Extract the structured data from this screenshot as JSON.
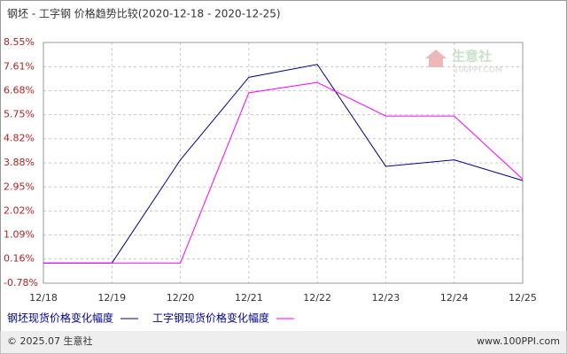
{
  "chart_data": {
    "type": "line",
    "title": "钢坯 - 工字钢 价格趋势比较(2020-12-18 - 2020-12-25)",
    "categories": [
      "12/18",
      "12/19",
      "12/20",
      "12/21",
      "12/22",
      "12/23",
      "12/24",
      "12/25"
    ],
    "series": [
      {
        "name": "钢坯现货价格变化幅度",
        "color": "#00008b",
        "values": [
          0,
          0,
          4.0,
          7.2,
          7.7,
          3.75,
          4.0,
          3.2
        ]
      },
      {
        "name": "工字钢现货价格变化幅度",
        "color": "#ff00ff",
        "values": [
          0,
          0,
          0,
          6.6,
          7.0,
          5.7,
          5.7,
          3.25
        ]
      }
    ],
    "ylim": [
      -0.78,
      8.55
    ],
    "yticks": [
      {
        "value": -0.78,
        "label": "-0.78%"
      },
      {
        "value": 0.16,
        "label": "0.16%"
      },
      {
        "value": 1.09,
        "label": "1.09%"
      },
      {
        "value": 2.02,
        "label": "2.02%"
      },
      {
        "value": 2.95,
        "label": "2.95%"
      },
      {
        "value": 3.88,
        "label": "3.88%"
      },
      {
        "value": 4.82,
        "label": "4.82%"
      },
      {
        "value": 5.75,
        "label": "5.75%"
      },
      {
        "value": 6.68,
        "label": "6.68%"
      },
      {
        "value": 7.61,
        "label": "7.61%"
      },
      {
        "value": 8.55,
        "label": "8.55%"
      }
    ],
    "grid": true,
    "watermark": {
      "name": "生意社",
      "site": "100PPI.COM"
    },
    "footer": {
      "left": "© 2025.07 生意社",
      "right": "www.100PPI.com"
    }
  }
}
